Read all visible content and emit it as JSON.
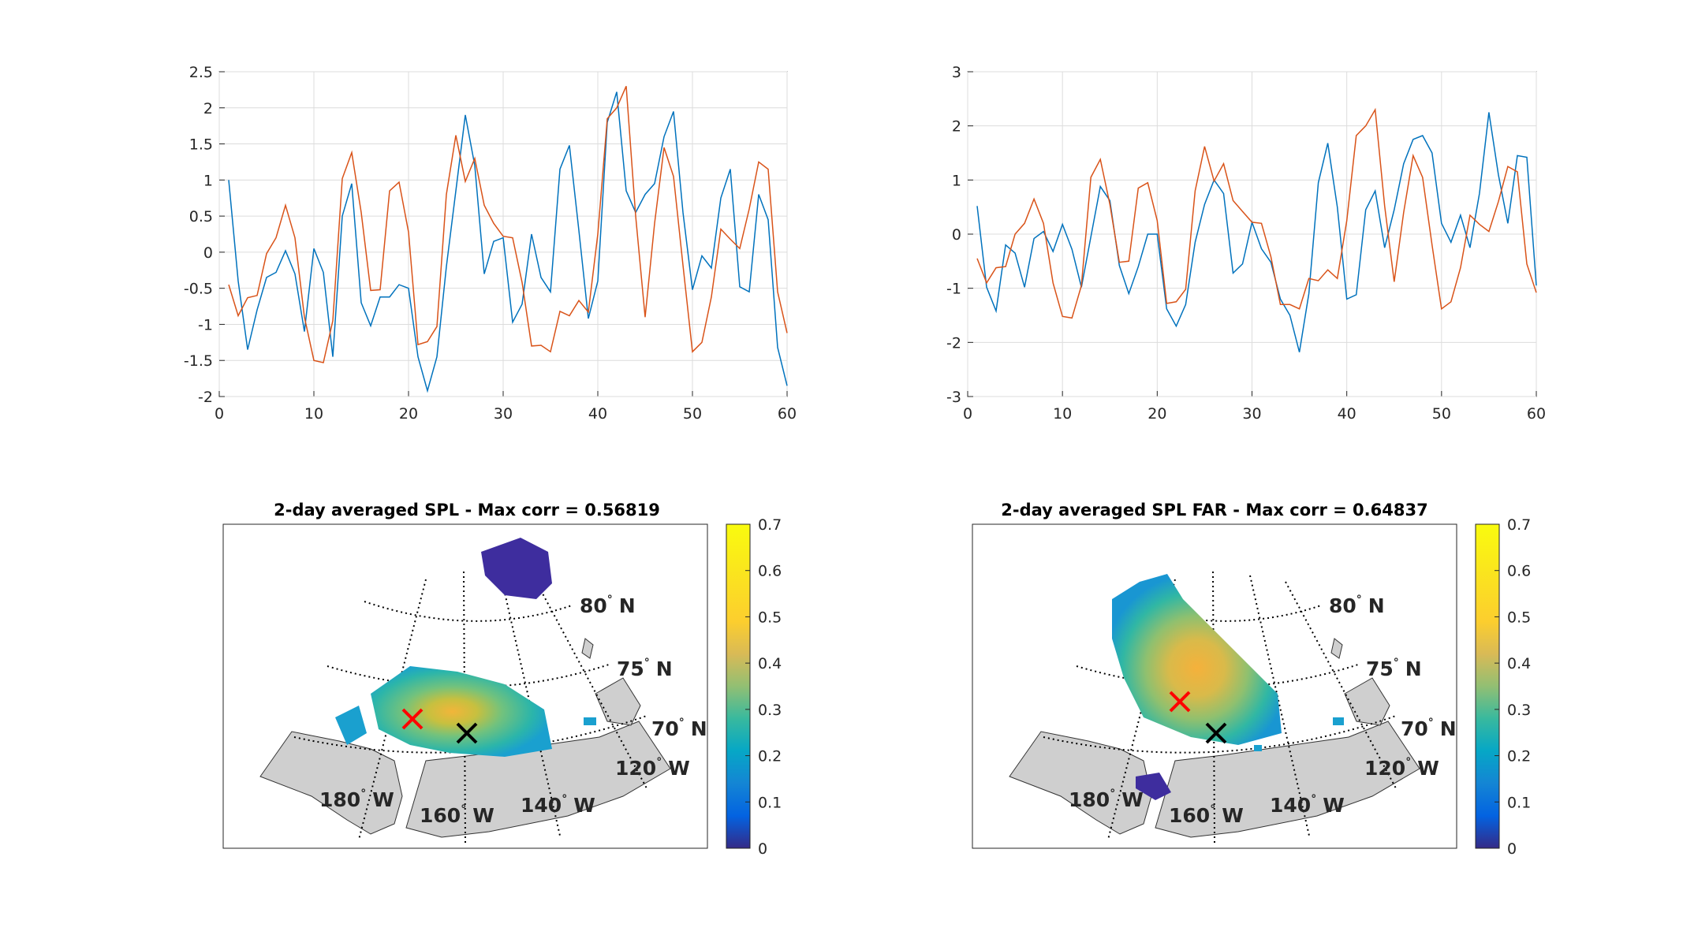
{
  "colors": {
    "series1": "#0072BD",
    "series2": "#D95319",
    "land": "#cfcfcf",
    "grid": "#dcdcdc",
    "marker_max": "#ff0000",
    "marker_point": "#000000"
  },
  "chart_data": [
    {
      "type": "line",
      "xlim": [
        0,
        60
      ],
      "ylim": [
        -2,
        2.5
      ],
      "xticks": [
        "0",
        "10",
        "20",
        "30",
        "40",
        "50",
        "60"
      ],
      "yticks": [
        "-2",
        "-1.5",
        "-1",
        "-0.5",
        "0",
        "0.5",
        "1",
        "1.5",
        "2",
        "2.5"
      ],
      "grid": true,
      "x": [
        1,
        2,
        3,
        4,
        5,
        6,
        7,
        8,
        9,
        10,
        11,
        12,
        13,
        14,
        15,
        16,
        17,
        18,
        19,
        20,
        21,
        22,
        23,
        24,
        25,
        26,
        27,
        28,
        29,
        30,
        31,
        32,
        33,
        34,
        35,
        36,
        37,
        38,
        39,
        40,
        41,
        42,
        43,
        44,
        45,
        46,
        47,
        48,
        49,
        50,
        51,
        52,
        53,
        54,
        55,
        56,
        57,
        58,
        59,
        60
      ],
      "series": [
        {
          "color": "#0072BD",
          "values": [
            1.0,
            -0.4,
            -1.35,
            -0.8,
            -0.35,
            -0.28,
            0.02,
            -0.3,
            -1.1,
            0.05,
            -0.28,
            -1.45,
            0.5,
            0.95,
            -0.7,
            -1.02,
            -0.62,
            -0.62,
            -0.45,
            -0.5,
            -1.45,
            -1.92,
            -1.45,
            -0.2,
            0.85,
            1.9,
            1.2,
            -0.3,
            0.15,
            0.2,
            -0.97,
            -0.72,
            0.25,
            -0.35,
            -0.55,
            1.15,
            1.48,
            0.3,
            -0.92,
            -0.4,
            1.8,
            2.22,
            0.85,
            0.55,
            0.8,
            0.95,
            1.6,
            1.95,
            0.55,
            -0.52,
            -0.05,
            -0.22,
            0.75,
            1.15,
            -0.48,
            -0.55,
            0.8,
            0.45,
            -1.32,
            -1.85
          ]
        },
        {
          "color": "#D95319",
          "values": [
            -0.45,
            -0.88,
            -0.63,
            -0.6,
            -0.02,
            0.2,
            0.65,
            0.2,
            -0.9,
            -1.5,
            -1.53,
            -0.95,
            1.02,
            1.38,
            0.55,
            -0.53,
            -0.52,
            0.85,
            0.97,
            0.28,
            -1.28,
            -1.24,
            -1.03,
            0.8,
            1.62,
            0.98,
            1.3,
            0.65,
            0.4,
            0.22,
            0.2,
            -0.42,
            -1.3,
            -1.29,
            -1.38,
            -0.82,
            -0.88,
            -0.67,
            -0.83,
            0.25,
            1.85,
            2.0,
            2.3,
            0.5,
            -0.9,
            0.4,
            1.45,
            1.05,
            -0.18,
            -1.38,
            -1.25,
            -0.62,
            0.32,
            0.18,
            0.05,
            0.6,
            1.25,
            1.15,
            -0.55,
            -1.12
          ]
        }
      ]
    },
    {
      "type": "line",
      "xlim": [
        0,
        60
      ],
      "ylim": [
        -3,
        3
      ],
      "xticks": [
        "0",
        "10",
        "20",
        "30",
        "40",
        "50",
        "60"
      ],
      "yticks": [
        "-3",
        "-2",
        "-1",
        "0",
        "1",
        "2",
        "3"
      ],
      "grid": true,
      "x": [
        1,
        2,
        3,
        4,
        5,
        6,
        7,
        8,
        9,
        10,
        11,
        12,
        13,
        14,
        15,
        16,
        17,
        18,
        19,
        20,
        21,
        22,
        23,
        24,
        25,
        26,
        27,
        28,
        29,
        30,
        31,
        32,
        33,
        34,
        35,
        36,
        37,
        38,
        39,
        40,
        41,
        42,
        43,
        44,
        45,
        46,
        47,
        48,
        49,
        50,
        51,
        52,
        53,
        54,
        55,
        56,
        57,
        58,
        59,
        60
      ],
      "series": [
        {
          "color": "#0072BD",
          "values": [
            0.52,
            -0.98,
            -1.42,
            -0.2,
            -0.35,
            -0.98,
            -0.08,
            0.05,
            -0.32,
            0.18,
            -0.28,
            -0.98,
            -0.05,
            0.88,
            0.62,
            -0.58,
            -1.1,
            -0.6,
            0.0,
            0.0,
            -1.38,
            -1.7,
            -1.3,
            -0.15,
            0.55,
            1.0,
            0.75,
            -0.72,
            -0.55,
            0.22,
            -0.27,
            -0.52,
            -1.2,
            -1.5,
            -2.18,
            -1.1,
            0.95,
            1.68,
            0.5,
            -1.2,
            -1.12,
            0.45,
            0.8,
            -0.25,
            0.45,
            1.3,
            1.75,
            1.82,
            1.5,
            0.2,
            -0.15,
            0.35,
            -0.25,
            0.75,
            2.25,
            1.1,
            0.2,
            1.45,
            1.42,
            -0.95
          ]
        },
        {
          "color": "#D95319",
          "values": [
            -0.45,
            -0.9,
            -0.62,
            -0.6,
            0.0,
            0.2,
            0.65,
            0.2,
            -0.9,
            -1.52,
            -1.55,
            -0.95,
            1.05,
            1.38,
            0.55,
            -0.52,
            -0.5,
            0.85,
            0.95,
            0.25,
            -1.28,
            -1.25,
            -1.02,
            0.8,
            1.62,
            0.98,
            1.3,
            0.62,
            0.42,
            0.22,
            0.2,
            -0.42,
            -1.3,
            -1.3,
            -1.38,
            -0.82,
            -0.86,
            -0.66,
            -0.82,
            0.25,
            1.82,
            2.0,
            2.3,
            0.52,
            -0.88,
            0.4,
            1.45,
            1.05,
            -0.2,
            -1.38,
            -1.25,
            -0.62,
            0.35,
            0.18,
            0.05,
            0.6,
            1.25,
            1.15,
            -0.55,
            -1.08
          ]
        }
      ]
    },
    {
      "type": "heatmap",
      "title": "2-day averaged SPL - Max corr = 0.56819",
      "colorbar": {
        "range": [
          0,
          0.7
        ],
        "ticks": [
          "0",
          "0.1",
          "0.2",
          "0.3",
          "0.4",
          "0.5",
          "0.6",
          "0.7"
        ],
        "colormap": "parula"
      },
      "lat_labels": [
        "80",
        "75",
        "70"
      ],
      "lon_labels": [
        "180",
        "160",
        "140",
        "120"
      ],
      "max_corr": 0.56819
    },
    {
      "type": "heatmap",
      "title": "2-day averaged SPL FAR - Max corr = 0.64837",
      "colorbar": {
        "range": [
          0,
          0.7
        ],
        "ticks": [
          "0",
          "0.1",
          "0.2",
          "0.3",
          "0.4",
          "0.5",
          "0.6",
          "0.7"
        ],
        "colormap": "parula"
      },
      "lat_labels": [
        "80",
        "75",
        "70"
      ],
      "lon_labels": [
        "180",
        "160",
        "140",
        "120"
      ],
      "max_corr": 0.64837
    }
  ],
  "units": {
    "deg": "°",
    "north": "N",
    "west": "W"
  }
}
